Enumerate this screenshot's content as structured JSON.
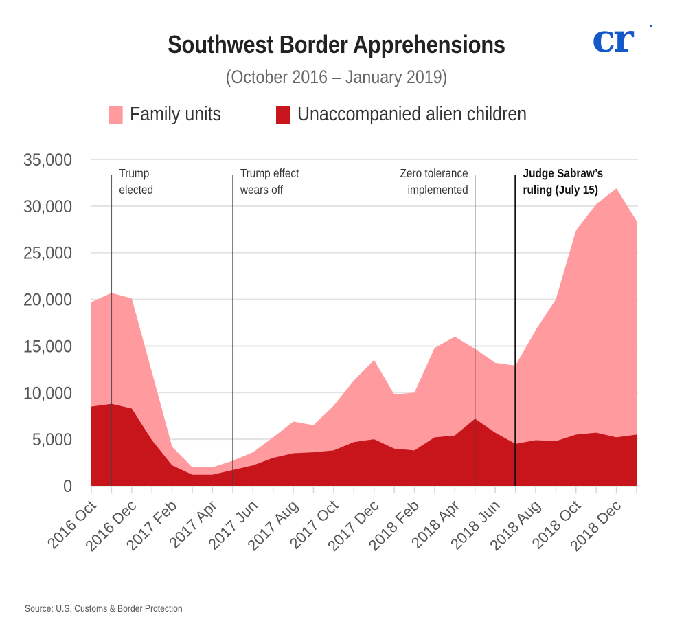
{
  "header": {
    "title": "Southwest Border Apprehensions",
    "subtitle": "(October 2016 – January 2019)",
    "logo_text": "cr"
  },
  "legend": [
    {
      "label": "Family units",
      "color": "#ff9a9f"
    },
    {
      "label": "Unaccompanied alien children",
      "color": "#c8141b"
    }
  ],
  "source": "Source: U.S. Customs & Border Protection",
  "chart_data": {
    "type": "area",
    "stacked": true,
    "title": "Southwest Border Apprehensions",
    "subtitle": "(October 2016 – January 2019)",
    "xlabel": "",
    "ylabel": "",
    "ylim": [
      0,
      35000
    ],
    "yticks": [
      0,
      5000,
      10000,
      15000,
      20000,
      25000,
      30000,
      35000
    ],
    "ytick_labels": [
      "0",
      "5,000",
      "10,000",
      "15,000",
      "20,000",
      "25,000",
      "30,000",
      "35,000"
    ],
    "grid": true,
    "legend_position": "top-center",
    "x": [
      "2016 Oct",
      "2016 Nov",
      "2016 Dec",
      "2017 Jan",
      "2017 Feb",
      "2017 Mar",
      "2017 Apr",
      "2017 May",
      "2017 Jun",
      "2017 Jul",
      "2017 Aug",
      "2017 Sep",
      "2017 Oct",
      "2017 Nov",
      "2017 Dec",
      "2018 Jan",
      "2018 Feb",
      "2018 Mar",
      "2018 Apr",
      "2018 May",
      "2018 Jun",
      "2018 Jul",
      "2018 Aug",
      "2018 Sep",
      "2018 Oct",
      "2018 Nov",
      "2018 Dec",
      "2019 Jan"
    ],
    "xtick_labels": [
      "2016 Oct",
      "2016 Dec",
      "2017 Feb",
      "2017 Apr",
      "2017 Jun",
      "2017 Aug",
      "2017 Oct",
      "2017 Dec",
      "2018 Feb",
      "2018 Apr",
      "2018 Jun",
      "2018 Aug",
      "2018 Oct",
      "2018 Dec"
    ],
    "series": [
      {
        "name": "Unaccompanied alien children",
        "color": "#c8141b",
        "values": [
          8500,
          8800,
          8300,
          4900,
          2200,
          1200,
          1200,
          1700,
          2200,
          3000,
          3500,
          3600,
          3800,
          4700,
          5000,
          4000,
          3800,
          5200,
          5400,
          7200,
          5700,
          4500,
          4900,
          4800,
          5500,
          5700,
          5200,
          5500
        ]
      },
      {
        "name": "Family units",
        "color": "#ff9a9f",
        "values": [
          11200,
          11900,
          11800,
          7300,
          2000,
          800,
          800,
          1000,
          1400,
          2200,
          3400,
          2900,
          4800,
          6600,
          8500,
          5800,
          6200,
          9600,
          10600,
          7500,
          7500,
          8400,
          11800,
          15200,
          21900,
          24500,
          26700,
          22900
        ]
      }
    ],
    "totals": [
      19700,
      20700,
      20100,
      12200,
      4200,
      2000,
      2000,
      2700,
      3600,
      5200,
      6900,
      6500,
      8600,
      11300,
      13500,
      9800,
      10000,
      14800,
      16000,
      14700,
      13200,
      12900,
      16700,
      20000,
      27400,
      30200,
      31900,
      28400
    ],
    "annotations": [
      {
        "lines": [
          "Trump",
          "elected"
        ],
        "x_month": 1,
        "align": "right-of-line",
        "bold": false
      },
      {
        "lines": [
          "Trump effect",
          "wears off"
        ],
        "x_month": 7,
        "align": "right-of-line",
        "bold": false
      },
      {
        "lines": [
          "Zero tolerance",
          "implemented"
        ],
        "x_month": 19,
        "align": "left-of-line",
        "bold": false
      },
      {
        "lines": [
          "Judge Sabraw’s",
          "ruling (July 15)"
        ],
        "x_month": 21,
        "align": "right-of-line",
        "bold": true
      }
    ]
  }
}
